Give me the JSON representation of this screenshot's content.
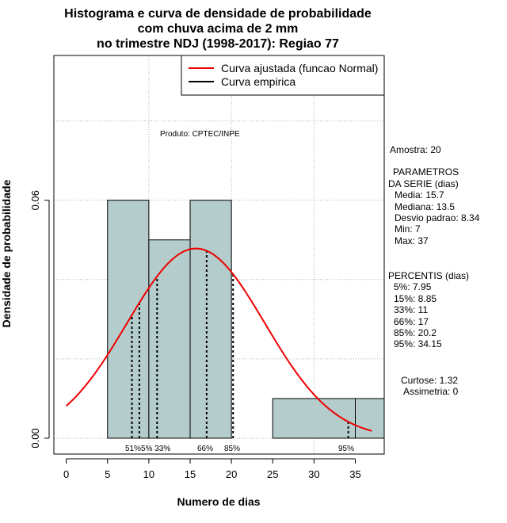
{
  "chart_data": {
    "type": "histogram",
    "title_lines": [
      "Histograma e curva de densidade de probabilidade",
      "com chuva acima de 2 mm",
      "no trimestre NDJ (1998-2017): Regiao 77"
    ],
    "xlabel": "Numero de dias",
    "ylabel": "Densidade de probabilidade",
    "xlim": [
      -1.5,
      38.5
    ],
    "ylim": [
      -0.004,
      0.0965
    ],
    "x_ticks": [
      0,
      5,
      10,
      15,
      20,
      25,
      30,
      35
    ],
    "y_ticks": [
      0.0,
      0.06
    ],
    "y_tick_labels": [
      "0.00",
      "0.06"
    ],
    "bins": [
      {
        "start": 5,
        "end": 10,
        "density": 0.06,
        "fill": "#b4cccc"
      },
      {
        "start": 10,
        "end": 15,
        "density": 0.05,
        "fill": "#b4cccc"
      },
      {
        "start": 15,
        "end": 20,
        "density": 0.06,
        "fill": "#b4cccc"
      },
      {
        "start": 20,
        "end": 25,
        "density": 0.0,
        "fill": "#b4cccc"
      },
      {
        "start": 25,
        "end": 35,
        "density": 0.01,
        "fill": "#b4cccc"
      },
      {
        "start": 35,
        "end": 40,
        "density": 0.01,
        "fill": "#b4cccc"
      }
    ],
    "normal_curve": {
      "mean": 15.7,
      "sd": 8.34,
      "x_from": 0,
      "x_to": 37,
      "color": "#ee0000"
    },
    "percentiles": [
      {
        "label": "5%",
        "x": 7.95
      },
      {
        "label": "15%",
        "x": 8.85
      },
      {
        "label": "33%",
        "x": 11
      },
      {
        "label": "66%",
        "x": 17
      },
      {
        "label": "85%",
        "x": 20.2
      },
      {
        "label": "95%",
        "x": 34.15
      }
    ],
    "percentile_markers": "51%5% 33%",
    "legend": [
      {
        "label": "Curva ajustada (funcao Normal)",
        "color": "#ee0000"
      },
      {
        "label": "Curva empirica",
        "color": "#000000"
      }
    ],
    "annotation": "Produto: CPTEC/INPE",
    "grid": true,
    "colors": {
      "bar_fill": "#b4cccc",
      "fitted": "#ee0000",
      "empirical": "#000000",
      "grid": "#b0b0b0"
    }
  },
  "stats_panel": {
    "sample": "Amostra: 20",
    "params_title_1": "PARAMETROS",
    "params_title_2": "DA SERIE (dias)",
    "media": "Media: 15.7",
    "mediana": "Mediana: 13.5",
    "desvio": "Desvio padrao: 8.34",
    "min": "Min: 7",
    "max": "Max: 37",
    "percentis_title": "PERCENTIS (dias)",
    "p5": "5%: 7.95",
    "p15": "15%: 8.85",
    "p33": "33%: 11",
    "p66": "66%: 17",
    "p85": "85%: 20.2",
    "p95": "95%: 34.15",
    "curtose": "Curtose: 1.32",
    "assimetria": "Assimetria: 0"
  }
}
